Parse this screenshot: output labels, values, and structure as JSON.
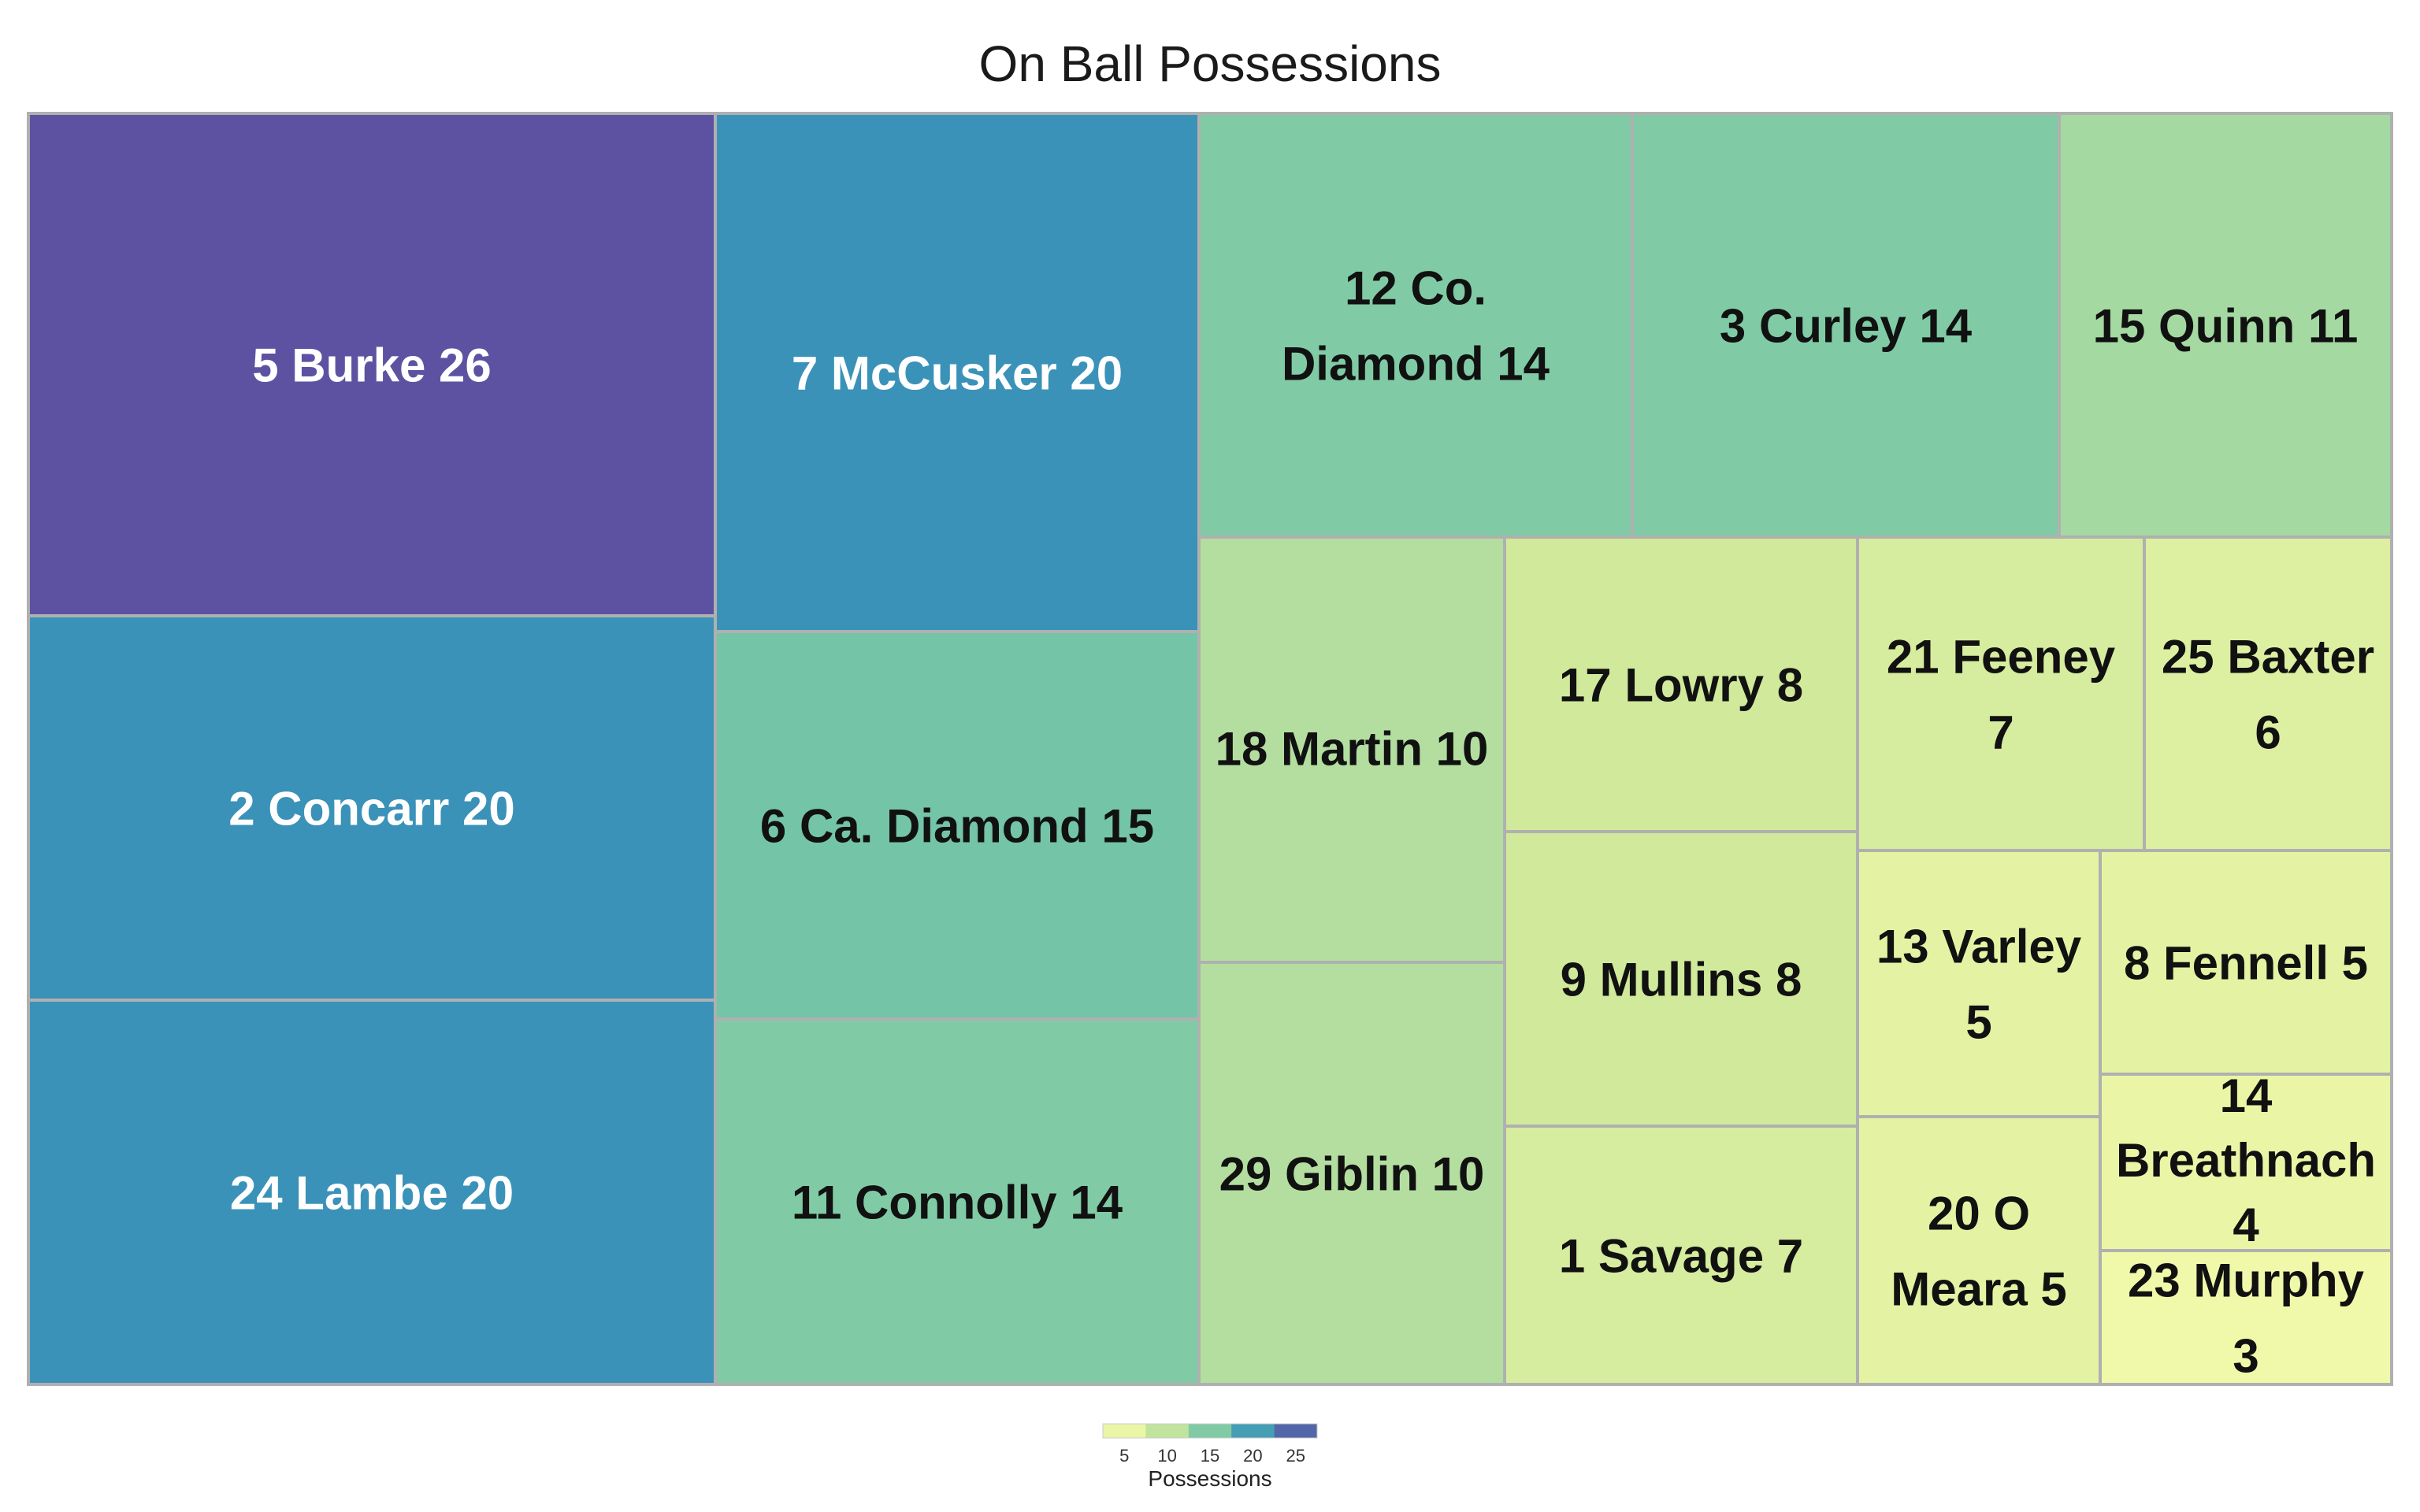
{
  "chart_data": {
    "type": "treemap",
    "title": "On Ball Possessions",
    "legend": {
      "title": "Possessions",
      "ticks": [
        "5",
        "10",
        "15",
        "20",
        "25"
      ],
      "range": [
        3,
        26
      ],
      "placement": "bottom"
    },
    "tiles": [
      {
        "label": "5 Burke 26",
        "value": 26
      },
      {
        "label": "2 Concarr 20",
        "value": 20
      },
      {
        "label": "24 Lambe 20",
        "value": 20
      },
      {
        "label": "7 McCusker 20",
        "value": 20
      },
      {
        "label": "6 Ca. Diamond 15",
        "value": 15
      },
      {
        "label": "11 Connolly 14",
        "value": 14
      },
      {
        "label": "12 Co. Diamond 14",
        "value": 14
      },
      {
        "label": "3 Curley 14",
        "value": 14
      },
      {
        "label": "15 Quinn 11",
        "value": 11
      },
      {
        "label": "18 Martin 10",
        "value": 10
      },
      {
        "label": "29 Giblin 10",
        "value": 10
      },
      {
        "label": "17 Lowry 8",
        "value": 8
      },
      {
        "label": "9 Mullins 8",
        "value": 8
      },
      {
        "label": "1 Savage 7",
        "value": 7
      },
      {
        "label": "21 Feeney 7",
        "value": 7
      },
      {
        "label": "25 Baxter 6",
        "value": 6
      },
      {
        "label": "13 Varley 5",
        "value": 5
      },
      {
        "label": "8 Fennell 5",
        "value": 5
      },
      {
        "label": "20 O Meara 5",
        "value": 5
      },
      {
        "label": "14 Breathnach 4",
        "value": 4
      },
      {
        "label": "23 Murphy 3",
        "value": 3
      }
    ]
  }
}
